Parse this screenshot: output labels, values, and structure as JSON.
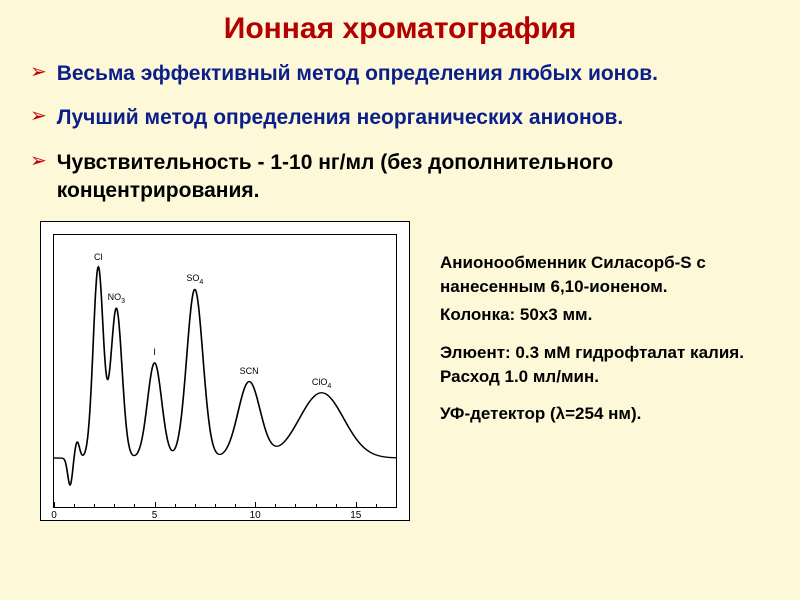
{
  "title": {
    "text": "Ионная хроматография",
    "color": "#b30000"
  },
  "bullets": {
    "marker_color": "#c00000",
    "items": [
      {
        "text": "Весьма эффективный метод определения любых ионов.",
        "color": "#0b1f8a"
      },
      {
        "text": "Лучший метод определения неорганических анионов.",
        "color": "#0b1f8a"
      },
      {
        "lead": "Чувствительность - 1-10 нг/мл ",
        "lead_color": "#000000",
        "tail": "(без  дополнительного концентрирования.",
        "tail_color": "#000000"
      }
    ]
  },
  "description": {
    "lines": [
      "Анионообменник Силасорб-S с нанесенным  6,10-ионеном.",
      "Колонка: 50х3 мм.",
      "",
      "Элюент: 0.3 мМ гидрофталат калия. Расход 1.0 мл/мин.",
      "",
      "УФ-детектор (λ=254 нм)."
    ],
    "color": "#000000"
  },
  "chromatogram": {
    "type": "line",
    "background_color": "#ffffff",
    "border_color": "#000000",
    "line_color": "#000000",
    "line_width": 1.2,
    "xlim": [
      0,
      17
    ],
    "xticks": [
      0,
      5,
      10,
      15
    ],
    "xtick_fontsize": 10,
    "baseline_y": 0.82,
    "peaks": [
      {
        "label": "Cl",
        "x": 2.2,
        "height": 0.7,
        "width": 0.25
      },
      {
        "label": "NO3",
        "x": 3.1,
        "height": 0.55,
        "width": 0.28,
        "sub": "3",
        "base": "NO"
      },
      {
        "label": "I",
        "x": 5.0,
        "height": 0.35,
        "width": 0.35
      },
      {
        "label": "SO4",
        "x": 7.0,
        "height": 0.62,
        "width": 0.4,
        "sub": "4",
        "base": "SO"
      },
      {
        "label": "SCN",
        "x": 9.7,
        "height": 0.28,
        "width": 0.55
      },
      {
        "label": "ClO4",
        "x": 13.3,
        "height": 0.24,
        "width": 1.1,
        "sub": "4",
        "base": "ClO"
      }
    ],
    "initial_disturbance": {
      "x": 0.8,
      "down": 0.1,
      "up": 0.06,
      "width": 0.5
    },
    "peak_label_fontsize": 9
  }
}
